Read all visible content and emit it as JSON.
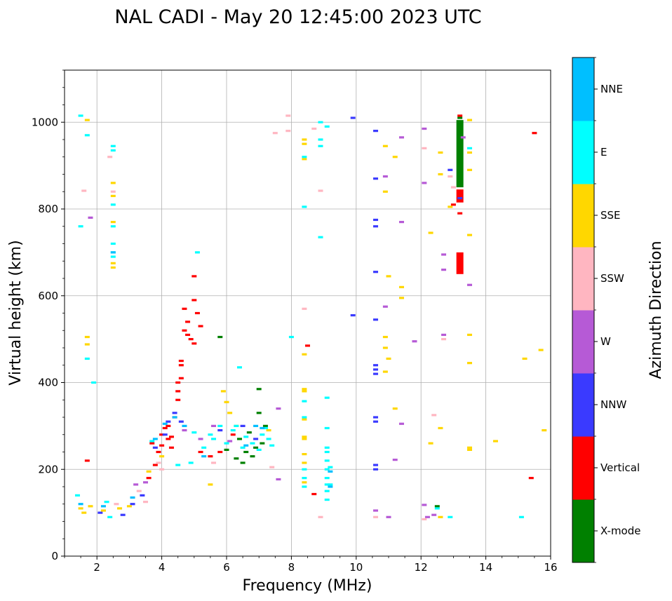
{
  "chart_data": {
    "type": "scatter",
    "title": "NAL CADI - May 20 12:45:00 2023 UTC",
    "xlabel": "Frequency (MHz)",
    "ylabel": "Virtual height (km)",
    "xlim": [
      1,
      16
    ],
    "ylim": [
      0,
      1120
    ],
    "xticks": [
      2,
      4,
      6,
      8,
      10,
      12,
      14,
      16
    ],
    "yticks": [
      0,
      200,
      400,
      600,
      800,
      1000
    ],
    "grid": true,
    "colorbar": {
      "title": "Azimuth Direction",
      "categories": [
        "X-mode",
        "Vertical",
        "NNW",
        "W",
        "SSW",
        "SSE",
        "E",
        "NNE"
      ],
      "colors": [
        "#008000",
        "#ff0000",
        "#3a3aff",
        "#b65ad6",
        "#ffb6c1",
        "#ffd700",
        "#00ffff",
        "#00bfff"
      ]
    },
    "series": [
      {
        "name": "X-mode",
        "points": [
          [
            6.3,
            225
          ],
          [
            6.6,
            240
          ],
          [
            6.9,
            250
          ],
          [
            7.0,
            385
          ],
          [
            7.1,
            260
          ],
          [
            7.2,
            300
          ],
          [
            6.5,
            215
          ],
          [
            6.8,
            230
          ],
          [
            5.8,
            505
          ],
          [
            6.0,
            245
          ],
          [
            7.0,
            330
          ],
          [
            6.4,
            270
          ],
          [
            6.7,
            285
          ],
          [
            13.2,
            830
          ],
          [
            13.2,
            1010
          ],
          [
            12.5,
            115
          ]
        ],
        "bars": [
          [
            13.2,
            850,
            1005
          ]
        ]
      },
      {
        "name": "Vertical",
        "points": [
          [
            1.7,
            220
          ],
          [
            3.9,
            240
          ],
          [
            4.0,
            280
          ],
          [
            4.1,
            295
          ],
          [
            4.2,
            270
          ],
          [
            4.3,
            250
          ],
          [
            4.4,
            320
          ],
          [
            4.5,
            360
          ],
          [
            4.5,
            400
          ],
          [
            4.6,
            440
          ],
          [
            4.6,
            450
          ],
          [
            4.7,
            520
          ],
          [
            4.8,
            540
          ],
          [
            4.9,
            500
          ],
          [
            5.0,
            490
          ],
          [
            5.1,
            560
          ],
          [
            4.7,
            570
          ],
          [
            5.0,
            590
          ],
          [
            5.2,
            530
          ],
          [
            4.8,
            510
          ],
          [
            3.8,
            210
          ],
          [
            3.6,
            180
          ],
          [
            5.0,
            645
          ],
          [
            5.5,
            230
          ],
          [
            5.8,
            240
          ],
          [
            6.2,
            280
          ],
          [
            8.5,
            485
          ],
          [
            8.7,
            143
          ],
          [
            15.4,
            180
          ],
          [
            15.5,
            975
          ],
          [
            13.2,
            790
          ],
          [
            13.0,
            810
          ],
          [
            13.2,
            1015
          ],
          [
            4.3,
            275
          ],
          [
            4.2,
            300
          ],
          [
            3.7,
            260
          ],
          [
            4.0,
            255
          ],
          [
            4.5,
            380
          ],
          [
            5.2,
            240
          ],
          [
            4.6,
            410
          ]
        ],
        "bars": [
          [
            13.2,
            650,
            700
          ],
          [
            13.2,
            815,
            845
          ]
        ]
      },
      {
        "name": "NNW",
        "points": [
          [
            2.1,
            100
          ],
          [
            3.1,
            120
          ],
          [
            3.4,
            140
          ],
          [
            3.8,
            250
          ],
          [
            4.2,
            310
          ],
          [
            4.4,
            330
          ],
          [
            4.6,
            310
          ],
          [
            5.8,
            290
          ],
          [
            6.5,
            300
          ],
          [
            6.9,
            270
          ],
          [
            9.9,
            1010
          ],
          [
            9.9,
            555
          ],
          [
            10.6,
            980
          ],
          [
            10.6,
            870
          ],
          [
            10.6,
            775
          ],
          [
            10.6,
            760
          ],
          [
            10.6,
            655
          ],
          [
            10.6,
            545
          ],
          [
            10.6,
            440
          ],
          [
            10.6,
            430
          ],
          [
            10.6,
            420
          ],
          [
            10.6,
            320
          ],
          [
            10.6,
            310
          ],
          [
            10.6,
            210
          ],
          [
            10.6,
            200
          ],
          [
            12.9,
            890
          ],
          [
            13.2,
            825
          ],
          [
            2.8,
            95
          ],
          [
            4.1,
            280
          ]
        ]
      },
      {
        "name": "W",
        "points": [
          [
            1.8,
            780
          ],
          [
            3.2,
            165
          ],
          [
            3.5,
            170
          ],
          [
            4.7,
            290
          ],
          [
            5.2,
            270
          ],
          [
            5.6,
            300
          ],
          [
            6.1,
            265
          ],
          [
            7.6,
            340
          ],
          [
            7.6,
            177
          ],
          [
            10.6,
            105
          ],
          [
            10.9,
            875
          ],
          [
            10.9,
            575
          ],
          [
            11.0,
            90
          ],
          [
            11.4,
            965
          ],
          [
            11.4,
            770
          ],
          [
            11.4,
            305
          ],
          [
            11.2,
            222
          ],
          [
            11.8,
            495
          ],
          [
            12.1,
            985
          ],
          [
            12.1,
            860
          ],
          [
            12.1,
            118
          ],
          [
            12.2,
            90
          ],
          [
            12.7,
            695
          ],
          [
            12.7,
            660
          ],
          [
            12.7,
            510
          ],
          [
            13.3,
            965
          ],
          [
            13.5,
            625
          ],
          [
            12.4,
            95
          ]
        ]
      },
      {
        "name": "SSW",
        "points": [
          [
            1.6,
            842
          ],
          [
            2.4,
            920
          ],
          [
            2.5,
            840
          ],
          [
            2.6,
            120
          ],
          [
            3.3,
            150
          ],
          [
            3.5,
            125
          ],
          [
            3.9,
            215
          ],
          [
            4.0,
            200
          ],
          [
            7.4,
            205
          ],
          [
            7.5,
            975
          ],
          [
            7.9,
            980
          ],
          [
            7.9,
            1015
          ],
          [
            8.4,
            570
          ],
          [
            8.7,
            985
          ],
          [
            8.9,
            842
          ],
          [
            8.9,
            90
          ],
          [
            10.6,
            90
          ],
          [
            12.1,
            940
          ],
          [
            12.1,
            85
          ],
          [
            12.4,
            325
          ],
          [
            12.7,
            500
          ],
          [
            12.9,
            875
          ],
          [
            13.0,
            850
          ],
          [
            5.6,
            215
          ]
        ]
      },
      {
        "name": "SSE",
        "points": [
          [
            1.5,
            110
          ],
          [
            1.6,
            100
          ],
          [
            1.7,
            1005
          ],
          [
            1.7,
            505
          ],
          [
            1.7,
            488
          ],
          [
            1.8,
            115
          ],
          [
            2.2,
            105
          ],
          [
            2.5,
            860
          ],
          [
            2.5,
            830
          ],
          [
            2.5,
            770
          ],
          [
            2.5,
            675
          ],
          [
            2.5,
            665
          ],
          [
            2.7,
            110
          ],
          [
            3.0,
            115
          ],
          [
            3.6,
            195
          ],
          [
            4.0,
            230
          ],
          [
            5.5,
            165
          ],
          [
            5.9,
            380
          ],
          [
            6.0,
            355
          ],
          [
            6.1,
            330
          ],
          [
            6.3,
            300
          ],
          [
            7.3,
            290
          ],
          [
            8.4,
            960
          ],
          [
            8.4,
            950
          ],
          [
            8.4,
            915
          ],
          [
            8.4,
            465
          ],
          [
            8.4,
            385
          ],
          [
            8.4,
            380
          ],
          [
            8.4,
            315
          ],
          [
            8.4,
            275
          ],
          [
            8.4,
            270
          ],
          [
            8.4,
            235
          ],
          [
            8.4,
            215
          ],
          [
            8.4,
            170
          ],
          [
            10.9,
            945
          ],
          [
            10.9,
            840
          ],
          [
            10.9,
            505
          ],
          [
            10.9,
            480
          ],
          [
            10.9,
            425
          ],
          [
            11.0,
            645
          ],
          [
            11.0,
            455
          ],
          [
            11.2,
            920
          ],
          [
            11.2,
            340
          ],
          [
            11.4,
            620
          ],
          [
            11.4,
            595
          ],
          [
            12.3,
            745
          ],
          [
            12.3,
            260
          ],
          [
            12.6,
            930
          ],
          [
            12.6,
            880
          ],
          [
            12.6,
            295
          ],
          [
            12.6,
            90
          ],
          [
            12.9,
            805
          ],
          [
            13.5,
            1005
          ],
          [
            13.5,
            930
          ],
          [
            13.5,
            890
          ],
          [
            13.5,
            740
          ],
          [
            13.5,
            510
          ],
          [
            13.5,
            445
          ],
          [
            13.5,
            250
          ],
          [
            13.5,
            245
          ],
          [
            14.3,
            265
          ],
          [
            15.2,
            455
          ],
          [
            15.7,
            475
          ],
          [
            15.8,
            290
          ]
        ]
      },
      {
        "name": "E",
        "points": [
          [
            1.5,
            1015
          ],
          [
            1.5,
            760
          ],
          [
            1.7,
            970
          ],
          [
            1.7,
            455
          ],
          [
            1.9,
            400
          ],
          [
            1.4,
            140
          ],
          [
            2.3,
            125
          ],
          [
            2.4,
            90
          ],
          [
            2.5,
            945
          ],
          [
            2.5,
            935
          ],
          [
            2.5,
            810
          ],
          [
            2.5,
            760
          ],
          [
            2.5,
            720
          ],
          [
            2.5,
            700
          ],
          [
            2.5,
            690
          ],
          [
            3.7,
            265
          ],
          [
            4.5,
            210
          ],
          [
            4.9,
            215
          ],
          [
            5.0,
            285
          ],
          [
            5.1,
            700
          ],
          [
            5.3,
            250
          ],
          [
            5.5,
            280
          ],
          [
            5.6,
            270
          ],
          [
            5.8,
            300
          ],
          [
            6.0,
            260
          ],
          [
            6.2,
            290
          ],
          [
            6.3,
            300
          ],
          [
            6.4,
            435
          ],
          [
            6.5,
            250
          ],
          [
            6.6,
            275
          ],
          [
            6.8,
            260
          ],
          [
            7.0,
            245
          ],
          [
            7.1,
            280
          ],
          [
            7.2,
            295
          ],
          [
            7.3,
            270
          ],
          [
            7.4,
            255
          ],
          [
            8.0,
            505
          ],
          [
            8.4,
            805
          ],
          [
            8.4,
            920
          ],
          [
            8.4,
            357
          ],
          [
            8.4,
            320
          ],
          [
            8.4,
            200
          ],
          [
            8.4,
            180
          ],
          [
            8.4,
            160
          ],
          [
            8.9,
            1000
          ],
          [
            8.9,
            960
          ],
          [
            8.9,
            945
          ],
          [
            8.9,
            735
          ],
          [
            9.1,
            990
          ],
          [
            9.1,
            365
          ],
          [
            9.1,
            295
          ],
          [
            9.1,
            250
          ],
          [
            9.1,
            240
          ],
          [
            9.1,
            220
          ],
          [
            9.1,
            200
          ],
          [
            9.1,
            180
          ],
          [
            9.1,
            165
          ],
          [
            9.1,
            150
          ],
          [
            9.1,
            130
          ],
          [
            9.2,
            205
          ],
          [
            9.2,
            165
          ],
          [
            12.9,
            90
          ],
          [
            13.5,
            940
          ],
          [
            15.1,
            90
          ],
          [
            12.5,
            110
          ]
        ]
      },
      {
        "name": "NNE",
        "points": [
          [
            1.5,
            120
          ],
          [
            2.2,
            115
          ],
          [
            2.5,
            700
          ],
          [
            3.1,
            135
          ],
          [
            3.8,
            270
          ],
          [
            4.1,
            305
          ],
          [
            4.4,
            320
          ],
          [
            4.7,
            300
          ],
          [
            5.3,
            230
          ],
          [
            6.6,
            255
          ],
          [
            6.9,
            300
          ],
          [
            7.1,
            295
          ],
          [
            9.2,
            195
          ],
          [
            9.2,
            160
          ]
        ]
      }
    ]
  }
}
